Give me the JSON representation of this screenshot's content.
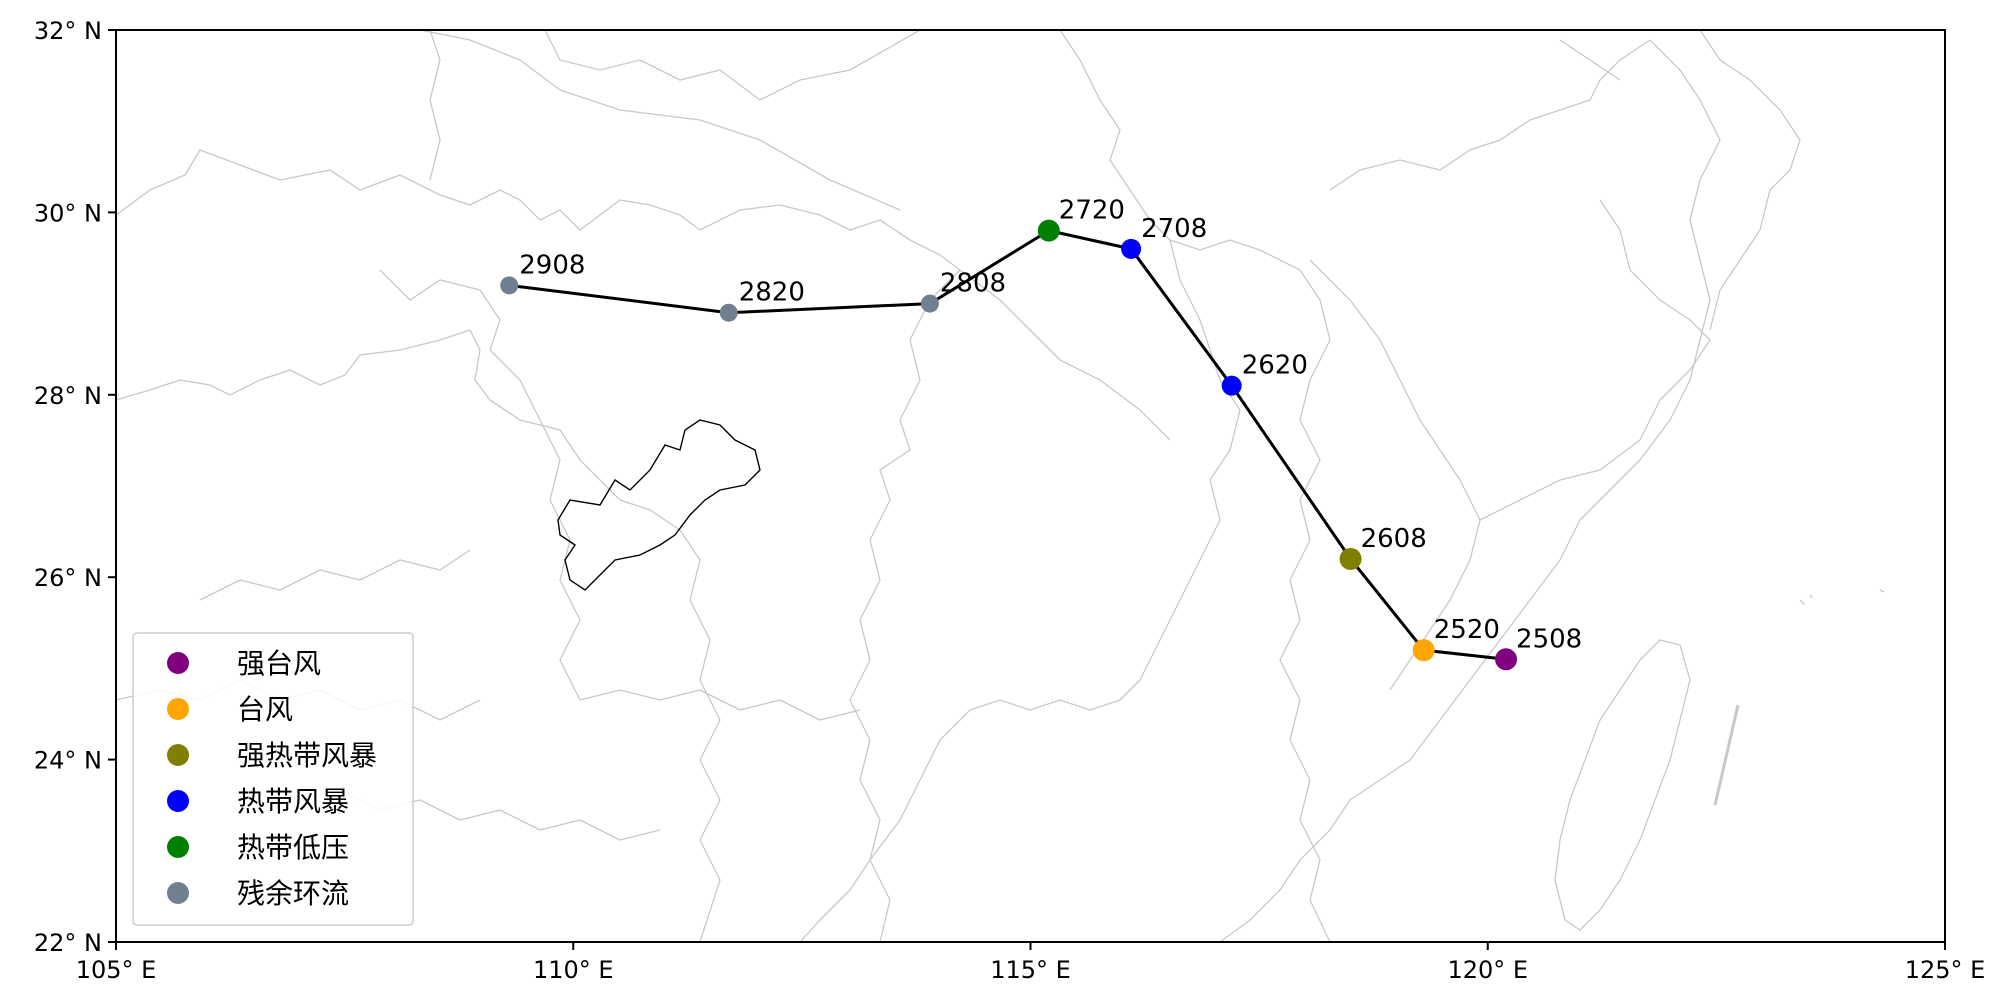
{
  "map": {
    "x_ticks": [
      "105° E",
      "110° E",
      "115° E",
      "120° E",
      "125° E"
    ],
    "y_ticks": [
      "22° N",
      "24° N",
      "26° N",
      "28° N",
      "30° N",
      "32° N"
    ],
    "lon_range": [
      105,
      125
    ],
    "lat_range": [
      22,
      32
    ],
    "track": [
      {
        "label": "2508",
        "lon": 120.2,
        "lat": 25.1,
        "category": "强台风"
      },
      {
        "label": "2520",
        "lon": 119.3,
        "lat": 25.2,
        "category": "台风"
      },
      {
        "label": "2608",
        "lon": 118.5,
        "lat": 26.2,
        "category": "强热带风暴"
      },
      {
        "label": "2620",
        "lon": 117.2,
        "lat": 28.1,
        "category": "热带风暴"
      },
      {
        "label": "2708",
        "lon": 116.1,
        "lat": 29.6,
        "category": "热带风暴"
      },
      {
        "label": "2720",
        "lon": 115.2,
        "lat": 29.8,
        "category": "热带低压"
      },
      {
        "label": "2808",
        "lon": 113.9,
        "lat": 29.0,
        "category": "残余环流"
      },
      {
        "label": "2820",
        "lon": 111.7,
        "lat": 28.9,
        "category": "残余环流"
      },
      {
        "label": "2908",
        "lon": 109.3,
        "lat": 29.2,
        "category": "残余环流"
      }
    ],
    "legend": [
      {
        "label": "强台风",
        "color": "#800080"
      },
      {
        "label": "台风",
        "color": "#FFA500"
      },
      {
        "label": "强热带风暴",
        "color": "#808000"
      },
      {
        "label": "热带风暴",
        "color": "#0000FF"
      },
      {
        "label": "热带低压",
        "color": "#008000"
      },
      {
        "label": "残余环流",
        "color": "#708090"
      }
    ]
  }
}
